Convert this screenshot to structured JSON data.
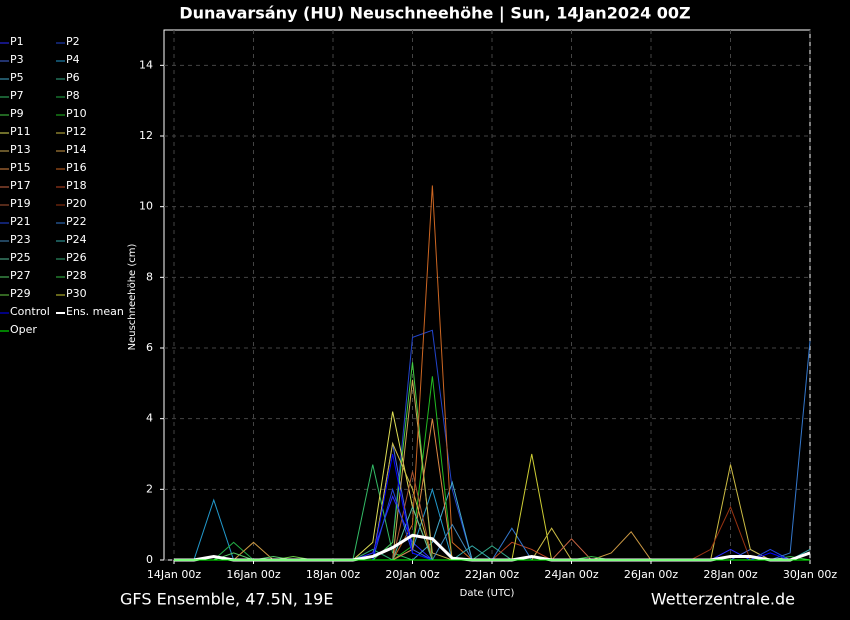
{
  "chart_data": {
    "type": "line",
    "title": "Dunavarsány  (HU)  Neuschneehöhe | Sun, 14Jan2024 00Z",
    "ylabel": "Neuschneehöhe (cm)",
    "xlabel": "Date (UTC)",
    "footer_left": "GFS Ensemble, 47.5N, 19E",
    "footer_right": "Wetterzentrale.de",
    "grid": true,
    "xlim": [
      0,
      384
    ],
    "ylim": [
      0,
      15
    ],
    "yticks": [
      0,
      2,
      4,
      6,
      8,
      10,
      12,
      14
    ],
    "xticks": [
      {
        "value": 0,
        "label": "14Jan 00z"
      },
      {
        "value": 48,
        "label": "16Jan 00z"
      },
      {
        "value": 96,
        "label": "18Jan 00z"
      },
      {
        "value": 144,
        "label": "20Jan 00z"
      },
      {
        "value": 192,
        "label": "22Jan 00z"
      },
      {
        "value": 240,
        "label": "24Jan 00z"
      },
      {
        "value": 288,
        "label": "26Jan 00z"
      },
      {
        "value": 336,
        "label": "28Jan 00z"
      },
      {
        "value": 384,
        "label": "30Jan 00z"
      }
    ],
    "x": [
      0,
      12,
      24,
      36,
      48,
      60,
      72,
      84,
      96,
      108,
      120,
      132,
      144,
      156,
      168,
      180,
      192,
      204,
      216,
      228,
      240,
      252,
      264,
      276,
      288,
      300,
      312,
      324,
      336,
      348,
      360,
      372,
      384
    ],
    "series": [
      {
        "name": "P1",
        "color": "#2a2aff",
        "values": [
          0,
          0,
          0,
          0,
          0,
          0,
          0,
          0,
          0,
          0,
          0.2,
          1.8,
          0.5,
          0,
          0,
          0,
          0,
          0,
          0,
          0,
          0,
          0,
          0,
          0,
          0,
          0,
          0,
          0,
          0.3,
          0,
          0,
          0,
          0
        ]
      },
      {
        "name": "P2",
        "color": "#2244cc",
        "values": [
          0,
          0,
          0,
          0,
          0,
          0,
          0,
          0,
          0,
          0,
          0,
          0.5,
          6.3,
          6.5,
          2,
          0,
          0,
          0,
          0,
          0,
          0,
          0,
          0,
          0,
          0,
          0,
          0,
          0,
          0,
          0,
          0,
          0,
          0
        ]
      },
      {
        "name": "P3",
        "color": "#4466dd",
        "values": [
          0,
          0,
          0,
          0,
          0,
          0,
          0,
          0,
          0,
          0,
          0,
          3.3,
          0.3,
          0,
          0,
          0,
          0,
          0,
          0,
          0,
          0,
          0,
          0,
          0,
          0,
          0,
          0,
          0,
          0,
          0.3,
          0,
          0,
          0
        ]
      },
      {
        "name": "P4",
        "color": "#2299cc",
        "values": [
          0,
          0,
          1.7,
          0,
          0,
          0,
          0,
          0,
          0,
          0,
          0,
          0,
          0.3,
          2,
          0,
          0,
          0,
          0,
          0,
          0,
          0,
          0,
          0,
          0,
          0,
          0,
          0,
          0,
          0,
          0,
          0,
          0,
          0
        ]
      },
      {
        "name": "P5",
        "color": "#44aacc",
        "values": [
          0,
          0,
          0,
          0,
          0,
          0,
          0,
          0,
          0,
          0,
          0,
          0,
          0,
          0.5,
          2.2,
          0,
          0,
          0,
          0,
          0,
          0,
          0,
          0,
          0,
          0,
          0,
          0,
          0,
          0,
          0,
          0,
          0,
          0
        ]
      },
      {
        "name": "P6",
        "color": "#33aa88",
        "values": [
          0,
          0,
          0,
          0,
          0,
          0,
          0,
          0,
          0,
          0,
          0,
          0,
          0,
          0,
          0,
          0,
          0.4,
          0,
          0,
          0,
          0,
          0,
          0,
          0,
          0,
          0,
          0,
          0,
          0,
          0,
          0,
          0,
          0
        ]
      },
      {
        "name": "P7",
        "color": "#33bb66",
        "values": [
          0,
          0,
          0,
          0,
          0,
          0,
          0,
          0,
          0,
          0,
          2.7,
          0.2,
          0,
          0,
          0,
          0,
          0,
          0,
          0,
          0,
          0,
          0,
          0,
          0,
          0,
          0,
          0,
          0,
          0,
          0,
          0,
          0,
          0
        ]
      },
      {
        "name": "P8",
        "color": "#22aa44",
        "values": [
          0,
          0,
          0,
          0.5,
          0,
          0,
          0,
          0,
          0,
          0,
          0,
          0,
          0,
          0,
          0,
          0,
          0,
          0,
          0,
          0,
          0,
          0,
          0,
          0,
          0,
          0,
          0,
          0,
          0,
          0,
          0,
          0,
          0
        ]
      },
      {
        "name": "P9",
        "color": "#44cc44",
        "values": [
          0,
          0,
          0,
          0,
          0,
          0,
          0,
          0,
          0,
          0,
          0,
          0.5,
          5.6,
          0,
          0,
          0,
          0,
          0,
          0,
          0,
          0,
          0,
          0,
          0,
          0,
          0,
          0,
          0,
          0,
          0,
          0,
          0,
          0
        ]
      },
      {
        "name": "P10",
        "color": "#22bb22",
        "values": [
          0,
          0,
          0,
          0,
          0,
          0,
          0,
          0,
          0,
          0,
          0,
          0,
          0.4,
          5.2,
          0,
          0,
          0,
          0,
          0,
          0,
          0,
          0,
          0,
          0,
          0,
          0,
          0,
          0,
          0,
          0,
          0,
          0,
          0
        ]
      },
      {
        "name": "P11",
        "color": "#dddd55",
        "values": [
          0,
          0,
          0,
          0,
          0,
          0,
          0,
          0,
          0,
          0,
          0.5,
          4.2,
          1.5,
          0,
          0,
          0,
          0,
          0,
          0,
          0,
          0,
          0,
          0,
          0,
          0,
          0,
          0,
          0,
          0,
          0,
          0,
          0,
          0
        ]
      },
      {
        "name": "P12",
        "color": "#ccbb44",
        "values": [
          0,
          0,
          0,
          0,
          0,
          0,
          0,
          0,
          0,
          0,
          0,
          3.3,
          2,
          0,
          0,
          0,
          0,
          0,
          0,
          0.9,
          0,
          0,
          0,
          0,
          0,
          0,
          0,
          0,
          2.7,
          0.3,
          0,
          0,
          0
        ]
      },
      {
        "name": "P13",
        "color": "#ccaa55",
        "values": [
          0,
          0,
          0,
          0,
          0,
          0,
          0,
          0,
          0,
          0,
          0,
          0,
          5.1,
          0.2,
          0,
          0,
          0,
          0,
          0,
          0,
          0,
          0,
          0,
          0,
          0,
          0,
          0,
          0,
          0,
          0,
          0,
          0,
          0
        ]
      },
      {
        "name": "P14",
        "color": "#cc9944",
        "values": [
          0,
          0,
          0,
          0,
          0.5,
          0,
          0,
          0,
          0,
          0,
          0,
          0,
          0,
          0,
          0,
          0,
          0,
          0,
          0,
          0,
          0,
          0,
          0.2,
          0.8,
          0,
          0,
          0,
          0,
          0,
          0,
          0,
          0,
          0
        ]
      },
      {
        "name": "P15",
        "color": "#dd8844",
        "values": [
          0,
          0,
          0,
          0,
          0,
          0,
          0,
          0,
          0,
          0,
          0,
          0,
          0.3,
          4,
          0,
          0,
          0,
          0,
          0,
          0,
          0,
          0,
          0,
          0,
          0,
          0,
          0,
          0,
          0,
          0,
          0,
          0,
          0
        ]
      },
      {
        "name": "P16",
        "color": "#cc6622",
        "values": [
          0,
          0,
          0,
          0,
          0,
          0,
          0,
          0,
          0,
          0,
          0,
          0,
          1,
          10.6,
          0.5,
          0,
          0,
          0,
          0,
          0,
          0,
          0,
          0,
          0,
          0,
          0,
          0,
          0,
          0,
          0,
          0,
          0,
          0
        ]
      },
      {
        "name": "P17",
        "color": "#cc6644",
        "values": [
          0,
          0,
          0,
          0,
          0,
          0,
          0,
          0,
          0,
          0,
          0,
          0,
          0,
          0,
          0,
          0,
          0,
          0,
          0,
          0,
          0.6,
          0,
          0,
          0,
          0,
          0,
          0,
          0,
          0,
          0,
          0,
          0,
          0
        ]
      },
      {
        "name": "P18",
        "color": "#bb4422",
        "values": [
          0,
          0,
          0,
          0,
          0,
          0,
          0,
          0,
          0,
          0,
          0,
          0,
          0,
          0,
          0,
          0,
          0,
          0.5,
          0.3,
          0,
          0,
          0,
          0,
          0,
          0,
          0,
          0,
          0,
          0,
          0,
          0,
          0,
          0
        ]
      },
      {
        "name": "P19",
        "color": "#aa5533",
        "values": [
          0,
          0,
          0,
          0,
          0,
          0,
          0,
          0,
          0,
          0,
          0,
          0,
          2.5,
          0,
          0,
          0,
          0,
          0,
          0,
          0,
          0,
          0,
          0,
          0,
          0,
          0,
          0,
          0,
          0,
          0,
          0,
          0,
          0
        ]
      },
      {
        "name": "P20",
        "color": "#993311",
        "values": [
          0,
          0,
          0,
          0,
          0,
          0,
          0,
          0,
          0,
          0,
          0,
          0,
          0,
          0,
          0,
          0,
          0,
          0,
          0,
          0,
          0,
          0,
          0,
          0,
          0,
          0,
          0,
          0.3,
          1.5,
          0,
          0,
          0,
          0
        ]
      },
      {
        "name": "P21",
        "color": "#2244dd",
        "values": [
          0,
          0,
          0,
          0,
          0,
          0,
          0,
          0,
          0,
          0,
          0,
          2,
          0.2,
          0,
          0,
          0,
          0,
          0,
          0,
          0,
          0,
          0,
          0,
          0,
          0,
          0,
          0,
          0,
          0,
          0,
          0.3,
          0,
          0
        ]
      },
      {
        "name": "P22",
        "color": "#3377cc",
        "values": [
          0,
          0,
          0,
          0,
          0,
          0,
          0,
          0,
          0,
          0,
          0,
          0,
          0,
          0,
          0,
          0,
          0,
          0.9,
          0,
          0,
          0,
          0,
          0,
          0,
          0,
          0,
          0,
          0,
          0,
          0,
          0,
          0.2,
          6.2
        ]
      },
      {
        "name": "P23",
        "color": "#4488bb",
        "values": [
          0,
          0,
          0,
          0,
          0,
          0,
          0,
          0,
          0,
          0,
          0,
          0,
          0,
          0,
          1,
          0,
          0,
          0,
          0,
          0,
          0,
          0,
          0,
          0,
          0,
          0,
          0,
          0,
          0,
          0,
          0,
          0,
          0
        ]
      },
      {
        "name": "P24",
        "color": "#33aaaa",
        "values": [
          0,
          0,
          0,
          0,
          0,
          0,
          0,
          0,
          0,
          0,
          0,
          0,
          0,
          0,
          0,
          0.4,
          0,
          0,
          0,
          0,
          0,
          0,
          0,
          0,
          0,
          0,
          0,
          0,
          0,
          0,
          0,
          0,
          0.3
        ]
      },
      {
        "name": "P25",
        "color": "#55bb99",
        "values": [
          0,
          0,
          0,
          0,
          0,
          0,
          0,
          0,
          0,
          0,
          0,
          0,
          1.5,
          0,
          0,
          0,
          0,
          0,
          0,
          0,
          0,
          0,
          0,
          0,
          0,
          0,
          0,
          0,
          0,
          0,
          0,
          0,
          0
        ]
      },
      {
        "name": "P26",
        "color": "#33aa77",
        "values": [
          0,
          0,
          0,
          0,
          0,
          0,
          0,
          0,
          0,
          0,
          0.3,
          0,
          0,
          0,
          0,
          0,
          0,
          0,
          0,
          0,
          0,
          0,
          0,
          0,
          0,
          0,
          0,
          0,
          0,
          0,
          0,
          0,
          0
        ]
      },
      {
        "name": "P27",
        "color": "#55cc66",
        "values": [
          0,
          0,
          0,
          0.2,
          0,
          0.1,
          0,
          0,
          0,
          0,
          0,
          0,
          0,
          0,
          0,
          0,
          0,
          0,
          0,
          0,
          0,
          0,
          0,
          0,
          0,
          0,
          0,
          0,
          0,
          0,
          0,
          0,
          0
        ]
      },
      {
        "name": "P28",
        "color": "#33bb44",
        "values": [
          0,
          0,
          0,
          0,
          0,
          0,
          0,
          0,
          0,
          0,
          0,
          0,
          0,
          0,
          0,
          0,
          0,
          0,
          0,
          0,
          0,
          0.1,
          0,
          0,
          0,
          0,
          0,
          0,
          0,
          0,
          0,
          0.1,
          0
        ]
      },
      {
        "name": "P29",
        "color": "#66cc44",
        "values": [
          0,
          0,
          0,
          0,
          0,
          0,
          0.1,
          0,
          0,
          0,
          0,
          0,
          0,
          0,
          0,
          0,
          0,
          0,
          0,
          0,
          0,
          0,
          0,
          0,
          0,
          0,
          0,
          0,
          0,
          0,
          0,
          0,
          0
        ]
      },
      {
        "name": "P30",
        "color": "#cccc33",
        "values": [
          0,
          0,
          0,
          0,
          0,
          0,
          0,
          0,
          0,
          0,
          0,
          0,
          0,
          0,
          0,
          0,
          0,
          0,
          3,
          0,
          0,
          0,
          0,
          0,
          0,
          0,
          0,
          0,
          0,
          0,
          0,
          0,
          0
        ]
      },
      {
        "name": "Control",
        "color": "#0000ff",
        "values": [
          0,
          0,
          0,
          0,
          0,
          0,
          0,
          0,
          0,
          0,
          0,
          3,
          0.2,
          0,
          0,
          0,
          0,
          0,
          0,
          0,
          0,
          0,
          0,
          0,
          0,
          0,
          0,
          0,
          0,
          0,
          0.2,
          0,
          0
        ]
      },
      {
        "name": "Ens. mean",
        "color": "#ffffff",
        "values": [
          0,
          0,
          0.1,
          0,
          0,
          0,
          0,
          0,
          0,
          0,
          0.1,
          0.35,
          0.7,
          0.6,
          0.05,
          0,
          0,
          0,
          0.1,
          0,
          0,
          0,
          0,
          0,
          0,
          0,
          0,
          0,
          0.1,
          0.1,
          0,
          0,
          0.2
        ]
      },
      {
        "name": "Oper",
        "color": "#00ff00",
        "values": [
          0,
          0,
          0,
          0,
          0,
          0,
          0,
          0,
          0,
          0,
          0,
          0,
          0,
          0,
          0,
          0,
          0,
          0,
          0,
          0,
          0,
          0,
          0,
          0,
          0,
          0,
          0,
          0,
          0,
          0,
          0,
          0,
          0
        ]
      }
    ]
  }
}
